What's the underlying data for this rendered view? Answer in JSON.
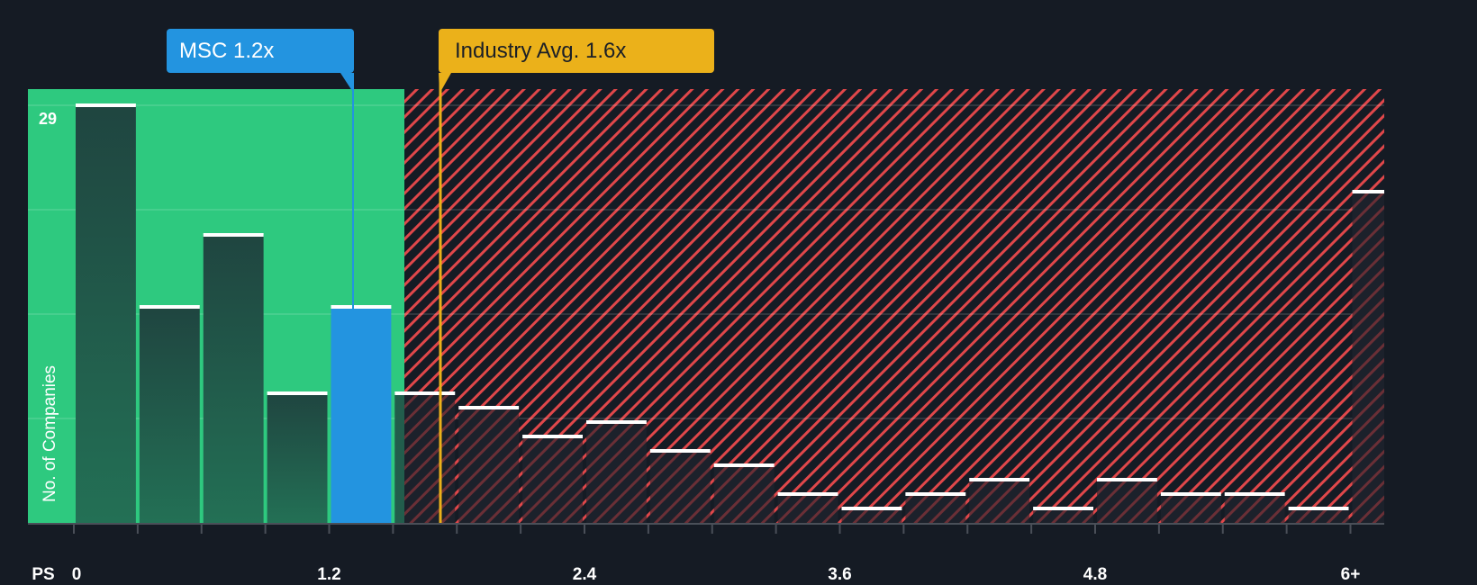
{
  "chart_data": {
    "type": "bar",
    "title": "",
    "xlabel": "PS",
    "ylabel": "No. of Companies",
    "x_tick_labels": [
      "0",
      "1.2",
      "2.4",
      "3.6",
      "4.8",
      "6+"
    ],
    "y_max_label": "29",
    "bin_width": 0.3,
    "categories": [
      "0-0.3",
      "0.3-0.6",
      "0.6-0.9",
      "0.9-1.2",
      "1.2-1.5",
      "1.5-1.8",
      "1.8-2.1",
      "2.1-2.4",
      "2.4-2.7",
      "2.7-3.0",
      "3.0-3.3",
      "3.3-3.6",
      "3.6-3.9",
      "3.9-4.2",
      "4.2-4.5",
      "4.5-4.8",
      "4.8-5.1",
      "5.1-5.4",
      "5.4-5.7",
      "5.7-6.0",
      "6+"
    ],
    "values": [
      29,
      15,
      20,
      9,
      15,
      9,
      8,
      6,
      7,
      5,
      4,
      2,
      1,
      2,
      3,
      1,
      3,
      2,
      2,
      1,
      23
    ],
    "highlight_index": 4,
    "ylim": [
      0,
      30
    ],
    "grid": true,
    "annotations": [
      {
        "label": "MSC 1.2x",
        "value": 1.2,
        "color": "#2394e0"
      },
      {
        "label": "Industry Avg. 1.6x",
        "value": 1.6,
        "color": "#ebb11a"
      }
    ],
    "zones": {
      "undervalued_until": 1.6,
      "green_color": "#2ec97f",
      "red_hatch_color": "#e0474a"
    }
  },
  "callouts": {
    "company": "MSC 1.2x",
    "industry": "Industry Avg. 1.6x"
  },
  "axis": {
    "x_title": "PS",
    "y_title": "No. of Companies",
    "y_top_value": "29"
  }
}
